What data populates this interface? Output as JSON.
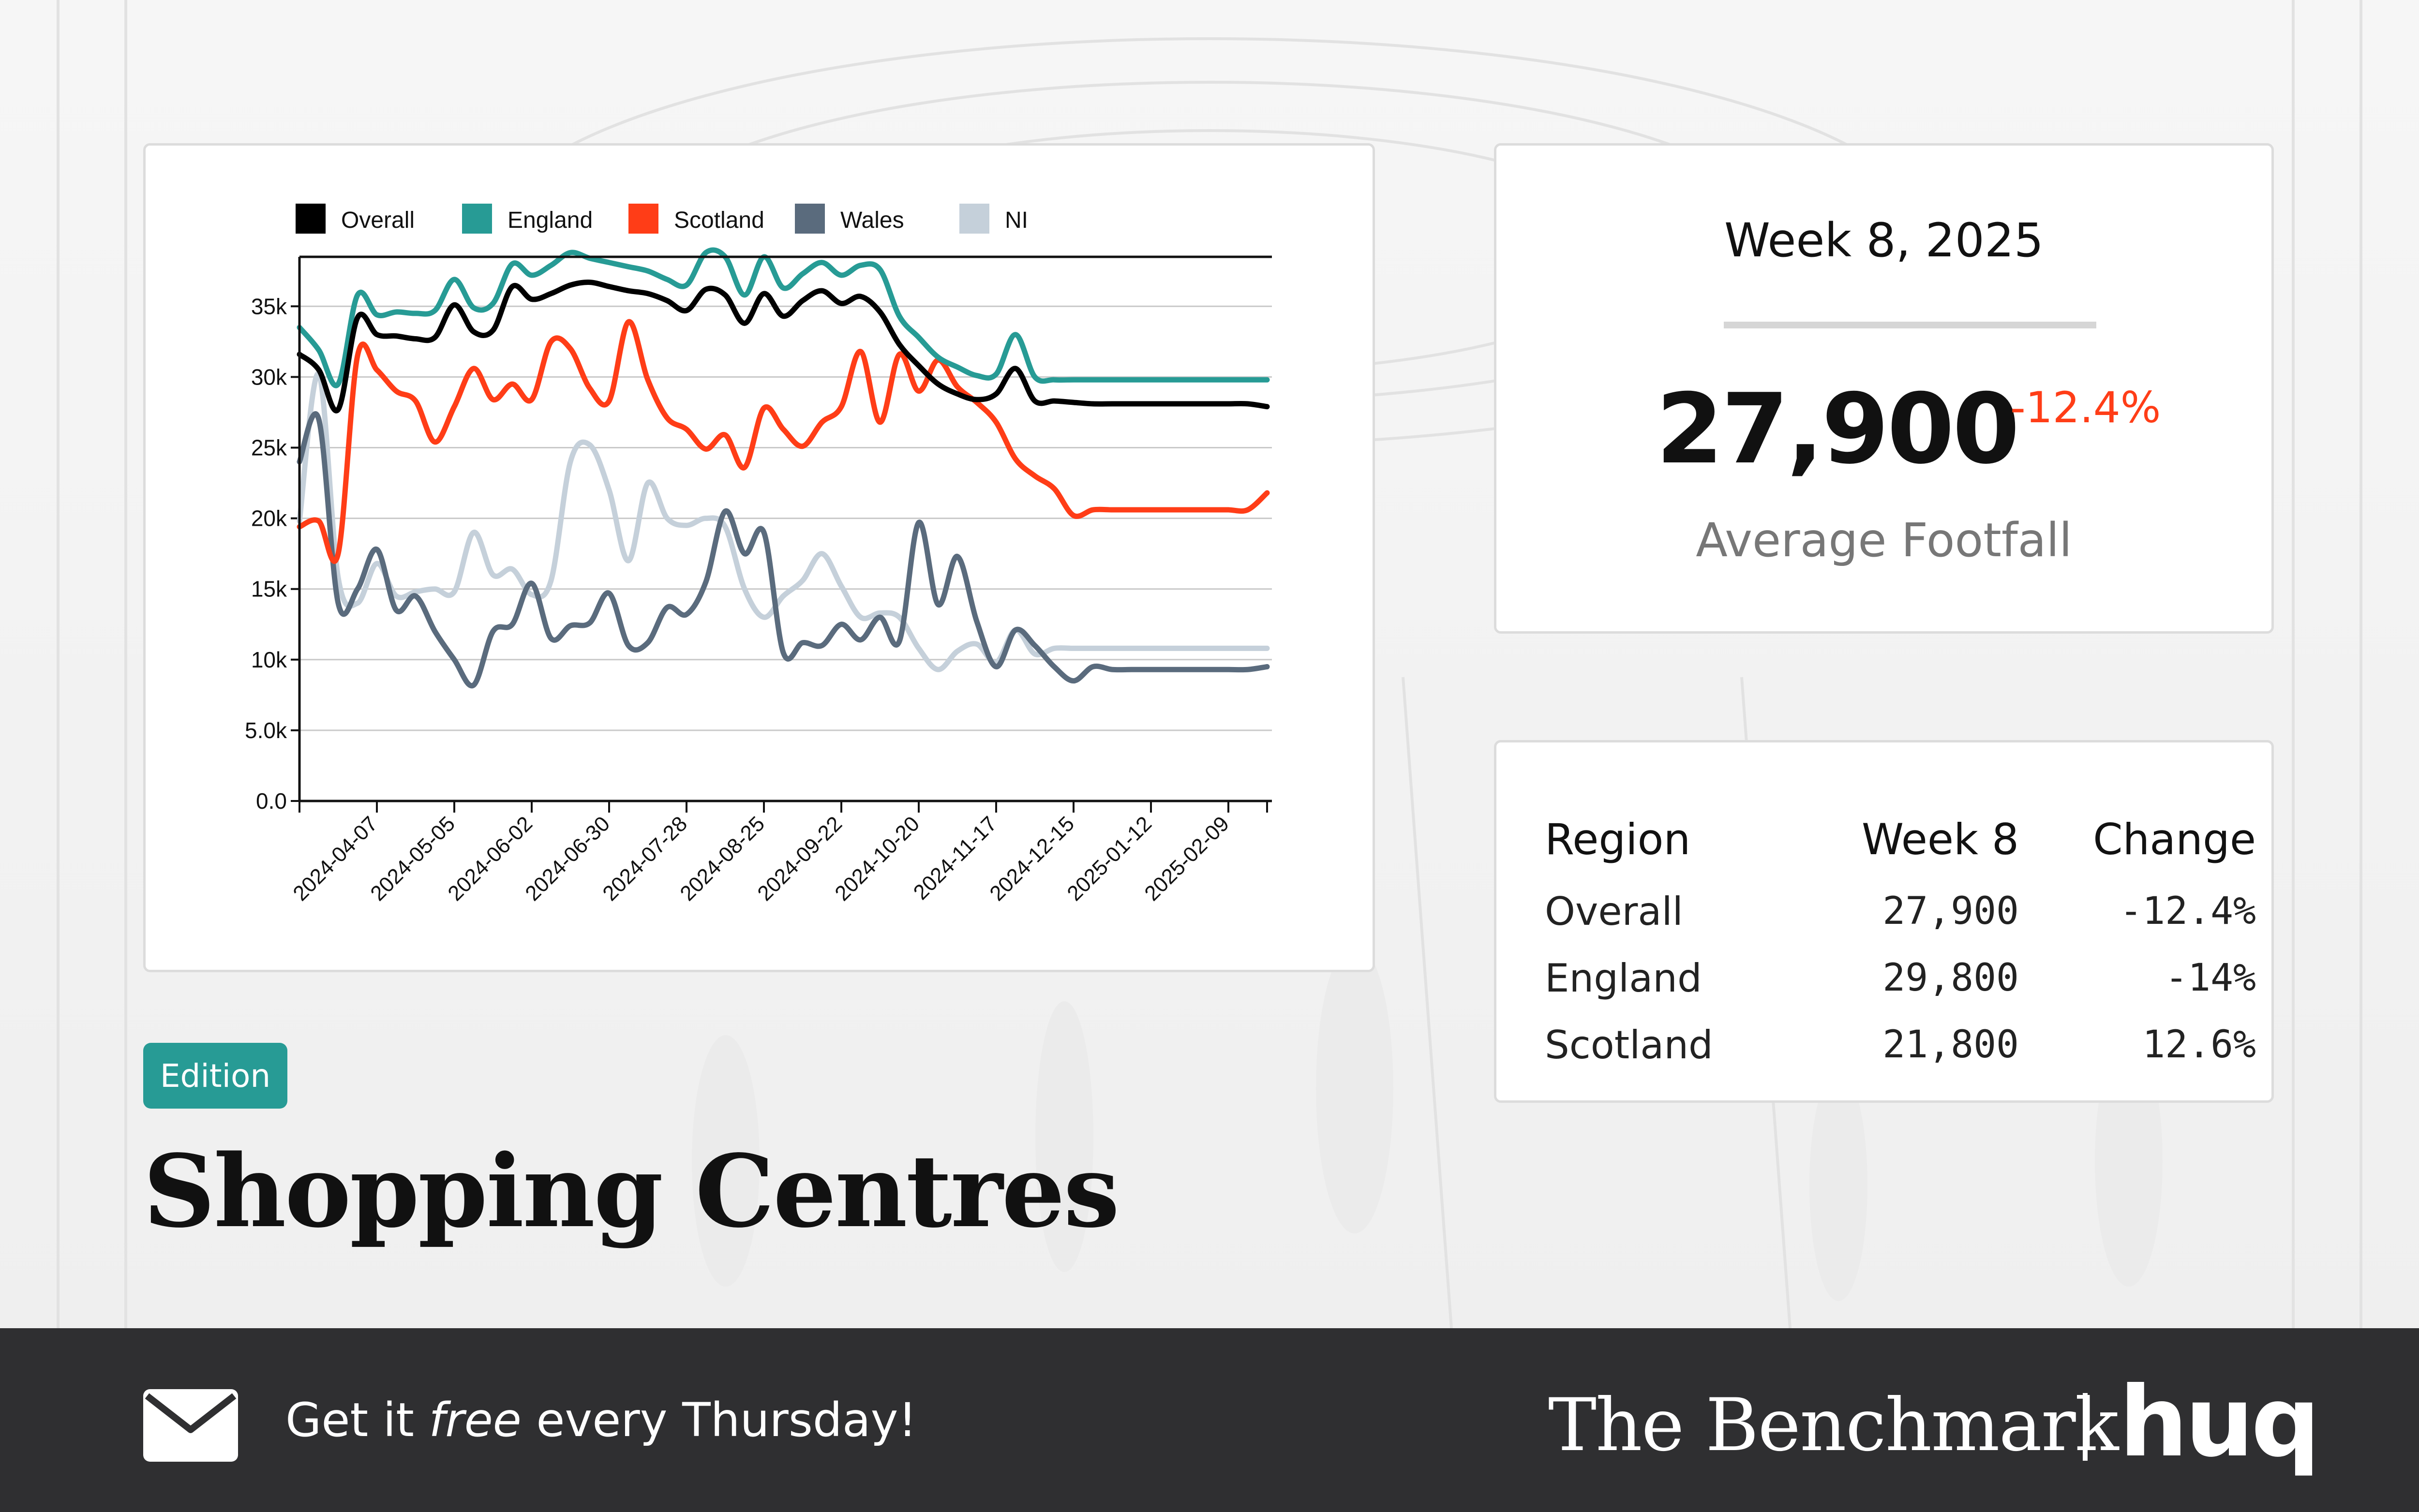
{
  "chart_data": {
    "type": "line",
    "title": "",
    "xlabel": "",
    "ylabel": "",
    "ylim": [
      0,
      38500
    ],
    "yticks": [
      0,
      5000,
      10000,
      15000,
      20000,
      25000,
      30000,
      35000
    ],
    "ytick_labels": [
      "0.0",
      "5.0k",
      "10k",
      "15k",
      "20k",
      "25k",
      "30k",
      "35k"
    ],
    "xtick_labels": [
      "2024-04-07",
      "2024-05-05",
      "2024-06-02",
      "2024-06-30",
      "2024-07-28",
      "2024-08-25",
      "2024-09-22",
      "2024-10-20",
      "2024-11-17",
      "2024-12-15",
      "2025-01-12",
      "2025-02-09"
    ],
    "x": [
      "2024-03-10",
      "2024-03-17",
      "2024-03-24",
      "2024-03-31",
      "2024-04-07",
      "2024-04-14",
      "2024-04-21",
      "2024-04-28",
      "2024-05-05",
      "2024-05-12",
      "2024-05-19",
      "2024-05-26",
      "2024-06-02",
      "2024-06-09",
      "2024-06-16",
      "2024-06-23",
      "2024-06-30",
      "2024-07-07",
      "2024-07-14",
      "2024-07-21",
      "2024-07-28",
      "2024-08-04",
      "2024-08-11",
      "2024-08-18",
      "2024-08-25",
      "2024-09-01",
      "2024-09-08",
      "2024-09-15",
      "2024-09-22",
      "2024-09-29",
      "2024-10-06",
      "2024-10-13",
      "2024-10-20",
      "2024-10-27",
      "2024-11-03",
      "2024-11-10",
      "2024-11-17",
      "2024-11-24",
      "2024-12-01",
      "2024-12-08",
      "2024-12-15",
      "2024-12-22",
      "2024-12-29",
      "2025-01-05",
      "2025-01-12",
      "2025-01-19",
      "2025-01-26",
      "2025-02-02",
      "2025-02-09",
      "2025-02-16",
      "2025-02-23"
    ],
    "legend_position": "top-left",
    "grid": "horizontal",
    "series": [
      {
        "name": "Overall",
        "color": "#000000",
        "values": [
          31600,
          30500,
          27700,
          34200,
          33000,
          32900,
          32700,
          32800,
          35100,
          33200,
          33300,
          36400,
          35500,
          35900,
          36500,
          36700,
          36400,
          36100,
          35900,
          35400,
          34700,
          36200,
          35800,
          33800,
          35900,
          34300,
          35400,
          36100,
          35200,
          35700,
          34600,
          32300,
          30800,
          29500,
          28800,
          28400,
          28800,
          30600,
          28300,
          28300,
          28200,
          28100,
          28100,
          28100,
          28100,
          28100,
          28100,
          28100,
          28100,
          28100,
          27900
        ]
      },
      {
        "name": "England",
        "color": "#279b95",
        "values": [
          33500,
          31900,
          29500,
          35800,
          34400,
          34600,
          34500,
          34700,
          36900,
          34900,
          35200,
          38000,
          37200,
          37900,
          38800,
          38400,
          38100,
          37800,
          37500,
          36900,
          36500,
          38800,
          38500,
          35800,
          38500,
          36300,
          37300,
          38100,
          37200,
          37900,
          37600,
          34300,
          32800,
          31400,
          30700,
          30100,
          30200,
          33000,
          30000,
          29800,
          29800,
          29800,
          29800,
          29800,
          29800,
          29800,
          29800,
          29800,
          29800,
          29800,
          29800
        ]
      },
      {
        "name": "Scotland",
        "color": "#ff3d17",
        "values": [
          19400,
          19800,
          17500,
          31500,
          30500,
          29000,
          28300,
          25400,
          27900,
          30600,
          28400,
          29500,
          28400,
          32500,
          32000,
          29200,
          28300,
          33900,
          29800,
          27100,
          26300,
          24900,
          25900,
          23600,
          27800,
          26300,
          25100,
          26800,
          27900,
          31800,
          26800,
          31600,
          29000,
          31200,
          29300,
          28200,
          26800,
          24200,
          23000,
          22100,
          20200,
          20600,
          20600,
          20600,
          20600,
          20600,
          20600,
          20600,
          20600,
          20600,
          21800
        ]
      },
      {
        "name": "Wales",
        "color": "#5a6b7d",
        "values": [
          24000,
          27000,
          14000,
          15000,
          17800,
          13500,
          14500,
          12000,
          10000,
          8200,
          12000,
          12500,
          15400,
          11500,
          12400,
          12600,
          14700,
          11000,
          11200,
          13700,
          13200,
          15500,
          20500,
          17500,
          19000,
          10500,
          11200,
          11000,
          12500,
          11400,
          13000,
          11300,
          19700,
          13900,
          17300,
          12700,
          9500,
          12100,
          11000,
          9500,
          8500,
          9500,
          9300,
          9300,
          9300,
          9300,
          9300,
          9300,
          9300,
          9300,
          9500
        ]
      },
      {
        "name": "NI",
        "color": "#c5d0da",
        "values": [
          19800,
          30200,
          15800,
          14000,
          16800,
          14500,
          14800,
          15000,
          14800,
          19000,
          16000,
          16400,
          14600,
          15600,
          24000,
          25200,
          22000,
          17000,
          22500,
          20000,
          19500,
          20000,
          19400,
          15000,
          13000,
          14500,
          15600,
          17500,
          15200,
          13000,
          13300,
          13000,
          10800,
          9300,
          10600,
          11100,
          9800,
          12100,
          10400,
          10800,
          10800,
          10800,
          10800,
          10800,
          10800,
          10800,
          10800,
          10800,
          10800,
          10800,
          10800
        ]
      }
    ]
  },
  "kpi": {
    "week": "Week 8, 2025",
    "value": "27,900",
    "change": "-12.4%",
    "label": "Average Footfall"
  },
  "region_table": {
    "headers": [
      "Region",
      "Week 8",
      "Change"
    ],
    "rows": [
      [
        "Overall",
        "27,900",
        "-12.4%"
      ],
      [
        "England",
        "29,800",
        "-14%"
      ],
      [
        "Scotland",
        "21,800",
        "12.6%"
      ]
    ]
  },
  "edition_badge": "Edition",
  "page_title": "Shopping Centres",
  "footer": {
    "cta_prefix": "Get it ",
    "cta_emph": "free",
    "cta_suffix": " every Thursday!",
    "brand": "The Benchmark",
    "logo": "huq",
    "mail_icon": "envelope-icon"
  },
  "colors": {
    "accent": "#279b95",
    "negative": "#ff3d17",
    "footer_bg": "#2f2f31"
  }
}
